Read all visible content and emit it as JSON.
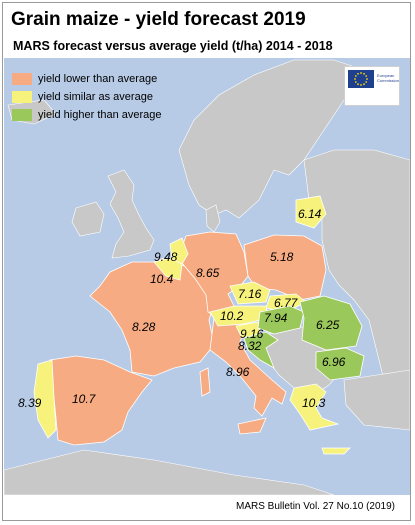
{
  "title": "Grain maize - yield forecast 2019",
  "subtitle": "MARS forecast versus average yield (t/ha) 2014 - 2018",
  "legend": [
    {
      "label": "yield lower than average",
      "color": "#f7ab82"
    },
    {
      "label": "yield similar as average",
      "color": "#f6f27c"
    },
    {
      "label": "yield higher than average",
      "color": "#9bc85a"
    }
  ],
  "logo": {
    "org_line1": "European",
    "org_line2": "Commission"
  },
  "regions": [
    {
      "country": "France",
      "value": "8.28",
      "class": "lower"
    },
    {
      "country": "Spain",
      "value": "10.7",
      "class": "lower"
    },
    {
      "country": "Portugal",
      "value": "8.39",
      "class": "similar"
    },
    {
      "country": "Germany",
      "value": "8.65",
      "class": "lower"
    },
    {
      "country": "Poland",
      "value": "5.18",
      "class": "lower"
    },
    {
      "country": "Netherlands",
      "value": "9.48",
      "class": "similar"
    },
    {
      "country": "Belgium",
      "value": "10.4",
      "class": "similar"
    },
    {
      "country": "Italy",
      "value": "8.96",
      "class": "lower"
    },
    {
      "country": "Czechia",
      "value": "7.16",
      "class": "similar"
    },
    {
      "country": "Slovakia",
      "value": "6.77",
      "class": "similar"
    },
    {
      "country": "Austria",
      "value": "10.2",
      "class": "similar"
    },
    {
      "country": "Hungary",
      "value": "7.94",
      "class": "higher"
    },
    {
      "country": "Slovenia",
      "value": "9.16",
      "class": "similar"
    },
    {
      "country": "Croatia",
      "value": "8.32",
      "class": "higher"
    },
    {
      "country": "Romania",
      "value": "6.25",
      "class": "higher"
    },
    {
      "country": "Bulgaria",
      "value": "6.96",
      "class": "higher"
    },
    {
      "country": "Greece",
      "value": "10.3",
      "class": "similar"
    },
    {
      "country": "Lithuania",
      "value": "6.14",
      "class": "similar"
    }
  ],
  "footer": "MARS Bulletin Vol. 27 No.10 (2019)"
}
